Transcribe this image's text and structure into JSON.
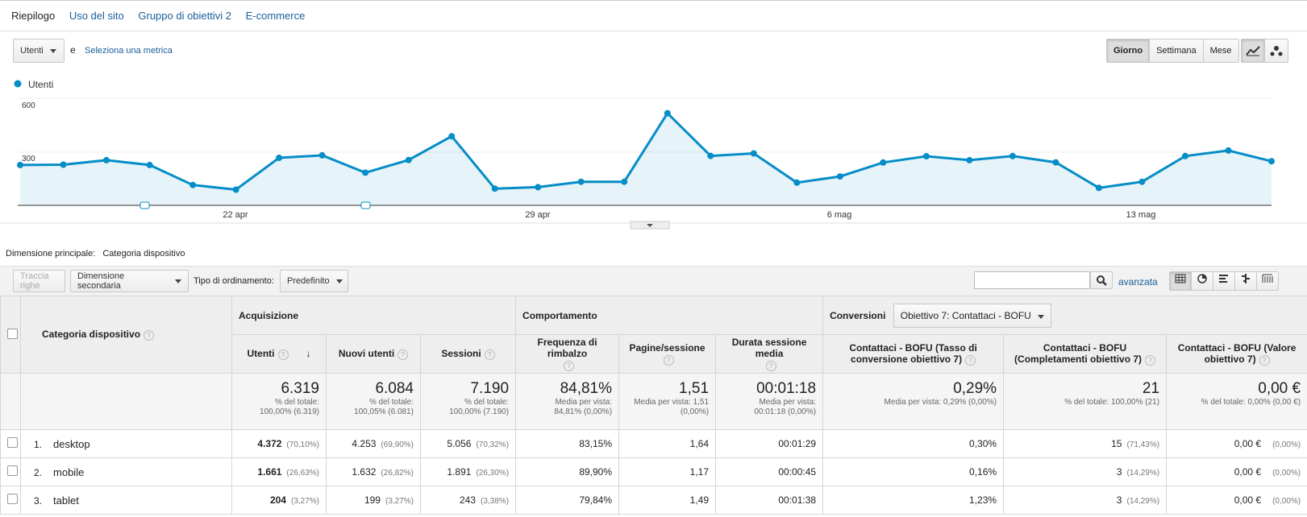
{
  "tabs": [
    "Riepilogo",
    "Uso del sito",
    "Gruppo di obiettivi 2",
    "E-commerce"
  ],
  "metric_selector": {
    "value": "Utenti",
    "and": "e",
    "select_link": "Seleziona una metrica"
  },
  "period_buttons": [
    "Giorno",
    "Settimana",
    "Mese"
  ],
  "chart_data": {
    "type": "line",
    "legend": "Utenti",
    "y_ticks": [
      "600",
      "300"
    ],
    "ylim": [
      0,
      600
    ],
    "x_labels": [
      "22 apr",
      "29 apr",
      "6 mag",
      "13 mag"
    ],
    "series": [
      {
        "name": "Utenti",
        "color": "#058dc7",
        "values": [
          226,
          228,
          253,
          226,
          114,
          88,
          266,
          280,
          183,
          254,
          387,
          94,
          102,
          132,
          132,
          516,
          277,
          291,
          127,
          162,
          240,
          275,
          253,
          276,
          241,
          98,
          132,
          276,
          307,
          247
        ]
      }
    ]
  },
  "dimension": {
    "label": "Dimensione principale:",
    "value": "Categoria dispositivo"
  },
  "toolbar": {
    "plot_rows": "Traccia righe",
    "secondary": "Dimensione secondaria",
    "sort_label": "Tipo di ordinamento:",
    "sort_value": "Predefinito",
    "advanced": "avanzata"
  },
  "table": {
    "dim_header": "Categoria dispositivo",
    "groups": {
      "acq": "Acquisizione",
      "beh": "Comportamento",
      "conv": "Conversioni",
      "goal": "Obiettivo 7: Contattaci - BOFU"
    },
    "columns": [
      "Utenti",
      "Nuovi utenti",
      "Sessioni",
      "Frequenza di rimbalzo",
      "Pagine/sessione",
      "Durata sessione media",
      "Contattaci - BOFU (Tasso di conversione obiettivo 7)",
      "Contattaci - BOFU (Completamenti obiettivo 7)",
      "Contattaci - BOFU (Valore obiettivo 7)"
    ],
    "totals": [
      {
        "value": "6.319",
        "sub1": "% del totale:",
        "sub2": "100,00% (6.319)"
      },
      {
        "value": "6.084",
        "sub1": "% del totale:",
        "sub2": "100,05% (6.081)"
      },
      {
        "value": "7.190",
        "sub1": "% del totale:",
        "sub2": "100,00% (7.190)"
      },
      {
        "value": "84,81%",
        "sub1": "Media per vista:",
        "sub2": "84,81% (0,00%)"
      },
      {
        "value": "1,51",
        "sub1": "Media per vista: 1,51",
        "sub2": "(0,00%)"
      },
      {
        "value": "00:01:18",
        "sub1": "Media per vista:",
        "sub2": "00:01:18 (0,00%)"
      },
      {
        "value": "0,29%",
        "sub1": "Media per vista: 0,29% (0,00%)",
        "sub2": ""
      },
      {
        "value": "21",
        "sub1": "% del totale: 100,00% (21)",
        "sub2": ""
      },
      {
        "value": "0,00 €",
        "sub1": "% del totale: 0,00% (0,00 €)",
        "sub2": ""
      }
    ],
    "rows": [
      {
        "idx": "1.",
        "name": "desktop",
        "users": "4.372",
        "users_p": "(70,10%)",
        "new": "4.253",
        "new_p": "(69,90%)",
        "sess": "5.056",
        "sess_p": "(70,32%)",
        "bounce": "83,15%",
        "pages": "1,64",
        "dur": "00:01:29",
        "conv": "0,30%",
        "comp": "15",
        "comp_p": "(71,43%)",
        "val": "0,00 €",
        "val_p": "(0,00%)"
      },
      {
        "idx": "2.",
        "name": "mobile",
        "users": "1.661",
        "users_p": "(26,63%)",
        "new": "1.632",
        "new_p": "(26,82%)",
        "sess": "1.891",
        "sess_p": "(26,30%)",
        "bounce": "89,90%",
        "pages": "1,17",
        "dur": "00:00:45",
        "conv": "0,16%",
        "comp": "3",
        "comp_p": "(14,29%)",
        "val": "0,00 €",
        "val_p": "(0,00%)"
      },
      {
        "idx": "3.",
        "name": "tablet",
        "users": "204",
        "users_p": "(3,27%)",
        "new": "199",
        "new_p": "(3,27%)",
        "sess": "243",
        "sess_p": "(3,38%)",
        "bounce": "79,84%",
        "pages": "1,49",
        "dur": "00:01:38",
        "conv": "1,23%",
        "comp": "3",
        "comp_p": "(14,29%)",
        "val": "0,00 €",
        "val_p": "(0,00%)"
      }
    ]
  }
}
